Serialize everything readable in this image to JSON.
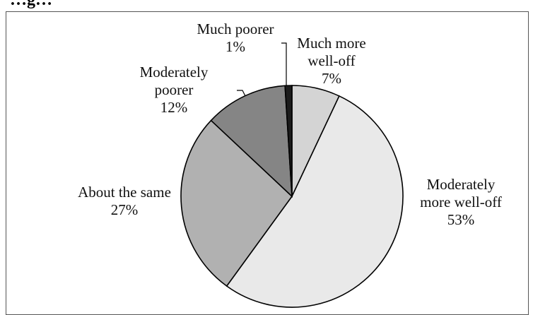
{
  "header": {
    "title_fragment": "…g…"
  },
  "chart_data": {
    "type": "pie",
    "title": "",
    "slices": [
      {
        "label_lines": [
          "Much more",
          "well-off"
        ],
        "pct_label": "7%",
        "value": 7,
        "color": "#d4d4d4"
      },
      {
        "label_lines": [
          "Moderately",
          "more well-off"
        ],
        "pct_label": "53%",
        "value": 53,
        "color": "#e9e9e9"
      },
      {
        "label_lines": [
          "About the same"
        ],
        "pct_label": "27%",
        "value": 27,
        "color": "#b1b1b1"
      },
      {
        "label_lines": [
          "Moderately",
          "poorer"
        ],
        "pct_label": "12%",
        "value": 12,
        "color": "#858585"
      },
      {
        "label_lines": [
          "Much poorer"
        ],
        "pct_label": "1%",
        "value": 1,
        "color": "#1c1c1c"
      }
    ],
    "start_angle_deg": 0,
    "direction": "clockwise",
    "stroke_color": "#000000",
    "legend": "none"
  }
}
